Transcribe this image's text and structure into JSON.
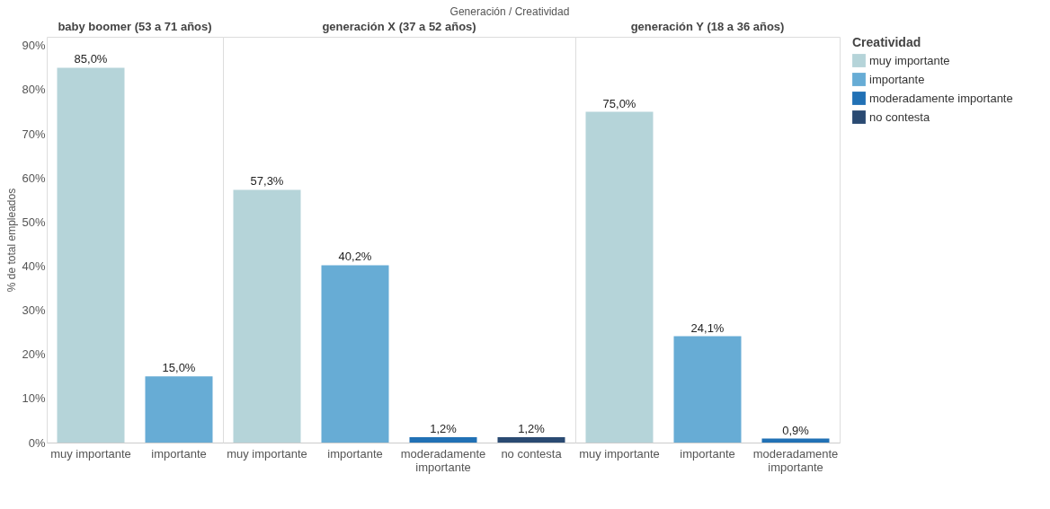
{
  "chart_data": [
    {
      "type": "bar",
      "title": "baby boomer (53 a 71 años)",
      "annotations": [
        "Generación  /  Creatividad"
      ],
      "ylabel": "% de total empleados",
      "categories": [
        "muy importante",
        "importante"
      ],
      "series": [
        {
          "color": "#b5d4d9",
          "values": [
            85.0,
            null
          ],
          "value_labels": [
            "85,0%",
            null
          ]
        },
        {
          "color": "#67acd5",
          "values": [
            null,
            15.0
          ],
          "value_labels": [
            null,
            "15,0%"
          ]
        }
      ],
      "ylim": [
        0,
        92
      ],
      "yticks": [
        {
          "value": 0,
          "label": "0%"
        },
        {
          "value": 10,
          "label": "10%"
        },
        {
          "value": 20,
          "label": "20%"
        },
        {
          "value": 30,
          "label": "30%"
        },
        {
          "value": 40,
          "label": "40%"
        },
        {
          "value": 50,
          "label": "50%"
        },
        {
          "value": 60,
          "label": "60%"
        },
        {
          "value": 70,
          "label": "70%"
        },
        {
          "value": 80,
          "label": "80%"
        },
        {
          "value": 90,
          "label": "90%"
        }
      ],
      "grid": false
    },
    {
      "type": "bar",
      "title": "generación X (37 a 52 años)",
      "categories": [
        "muy importante",
        "importante",
        "moderadamente importante",
        "no contesta"
      ],
      "series": [
        {
          "name": "muy importante",
          "color": "#b5d4d9",
          "values": [
            57.3,
            null,
            null,
            null
          ],
          "value_labels": [
            "57,3%",
            null,
            null,
            null
          ]
        },
        {
          "name": "importante",
          "color": "#67acd5",
          "values": [
            null,
            40.2,
            null,
            null
          ],
          "value_labels": [
            null,
            "40,2%",
            null,
            null
          ]
        },
        {
          "name": "moderadamente importante",
          "color": "#2171b5",
          "values": [
            null,
            null,
            1.2,
            null
          ],
          "value_labels": [
            null,
            null,
            "1,2%",
            null
          ]
        },
        {
          "name": "no contesta",
          "color": "#2a4a72",
          "values": [
            null,
            null,
            null,
            1.2
          ],
          "value_labels": [
            null,
            null,
            null,
            "1,2%"
          ]
        }
      ],
      "ylim": [
        0,
        92
      ],
      "tick_labels": "x",
      "grid": false,
      "legend": "right",
      "legend_title": "Creatividad"
    },
    {
      "type": "bar",
      "title": "generación Y (18 a 36 años)",
      "categories": [
        "muy importante",
        "importante",
        "moderadamente importante"
      ],
      "series": [
        {
          "color": "#b5d4d9",
          "values": [
            75.0,
            null,
            null
          ],
          "value_labels": [
            "75,0%",
            null,
            null
          ]
        },
        {
          "color": "#67acd5",
          "values": [
            null,
            24.1,
            null
          ],
          "value_labels": [
            null,
            "24,1%",
            null
          ]
        },
        {
          "color": "#2171b5",
          "values": [
            null,
            null,
            0.9
          ],
          "value_labels": [
            null,
            null,
            "0,9%"
          ]
        }
      ],
      "ylim": [
        0,
        92
      ],
      "tick_labels": "x",
      "grid": false
    }
  ]
}
